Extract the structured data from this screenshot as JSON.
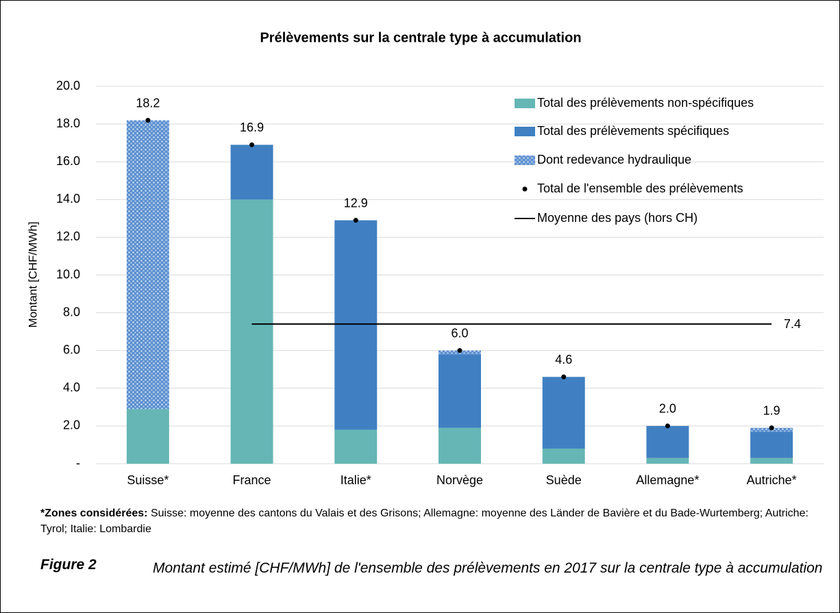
{
  "chart_data": {
    "type": "stacked_bar",
    "title": "Prélèvements sur la centrale type à accumulation",
    "y_label": "Montant [CHF/MWh]",
    "categories": [
      "Suisse*",
      "France",
      "Italie*",
      "Norvège",
      "Suède",
      "Allemagne*",
      "Autriche*"
    ],
    "series": [
      {
        "name": "Total des prélèvements non-spécifiques",
        "color": "#66b6b6",
        "values": [
          2.9,
          14.0,
          1.8,
          1.9,
          0.8,
          0.3,
          0.3
        ]
      },
      {
        "name": "Total des prélèvements spécifiques",
        "color": "#4080c2",
        "values": [
          0,
          2.9,
          11.1,
          3.9,
          3.8,
          1.7,
          1.4
        ]
      },
      {
        "name": "Dont redevance hydraulique",
        "color": "pattern",
        "values": [
          15.3,
          0,
          0,
          0.2,
          0,
          0,
          0.2
        ]
      }
    ],
    "totals": {
      "name": "Total de l'ensemble des prélèvements",
      "color": "#000000",
      "values": [
        18.2,
        16.9,
        12.9,
        6.0,
        4.6,
        2.0,
        1.9
      ],
      "value_labels": [
        "18.2",
        "16.9",
        "12.9",
        "6.0",
        "4.6",
        "2.0",
        "1.9"
      ]
    },
    "average": {
      "name": "Moyenne des pays (hors CH)",
      "color": "#000000",
      "value": 7.4,
      "value_label": "7.4"
    },
    "ylim": [
      0,
      20
    ],
    "yticks": [
      {
        "value": 0,
        "label": "-"
      },
      {
        "value": 2,
        "label": "2.0"
      },
      {
        "value": 4,
        "label": "4.0"
      },
      {
        "value": 6,
        "label": "6.0"
      },
      {
        "value": 8,
        "label": "8.0"
      },
      {
        "value": 10,
        "label": "10.0"
      },
      {
        "value": 12,
        "label": "12.0"
      },
      {
        "value": 14,
        "label": "14.0"
      },
      {
        "value": 16,
        "label": "16.0"
      },
      {
        "value": 18,
        "label": "18.0"
      },
      {
        "value": 20,
        "label": "20.0"
      }
    ],
    "grid": true
  },
  "footnote": {
    "label": "*Zones considérées:",
    "text": "Suisse: moyenne des cantons du Valais et des Grisons; Allemagne: moyenne des Länder de Bavière et du Bade-Wurtemberg; Autriche: Tyrol; Italie: Lombardie"
  },
  "caption": {
    "label": "Figure 2",
    "text": "Montant estimé [CHF/MWh] de l'ensemble des prélèvements en 2017 sur la centrale type à accumulation"
  }
}
